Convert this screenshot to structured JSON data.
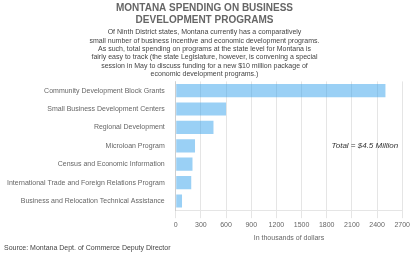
{
  "chart_data": {
    "type": "bar",
    "orientation": "horizontal",
    "title": "MONTANA SPENDING ON BUSINESS\nDEVELOPMENT PROGRAMS",
    "subtitle": "Of Ninth District states, Montana currently has a comparatively\nsmall number of business incentive and economic development programs.\nAs such, total spending on programs at the state level for Montana is\nfairly easy to track (the state Legislature, however, is convening a special\nsession in May to discuss funding for a new $10 million package of\neconomic development programs.)",
    "source": "Source: Montana Dept. of Commerce Deputy Director",
    "annotation": "Total = $4.5 Million",
    "xlabel": "In thousands of dollars",
    "categories": [
      "Community Development Block Grants",
      "Small Business Development Centers",
      "Regional Development",
      "Microloan Program",
      "Census and Economic Information",
      "International Trade and Foreign Relations Program",
      "Business and Relocation Technical Assistance"
    ],
    "values": [
      2500,
      600,
      450,
      230,
      200,
      185,
      75
    ],
    "xlim": [
      0,
      2700
    ],
    "xticks": [
      0,
      300,
      600,
      900,
      1200,
      1500,
      1800,
      2100,
      2400,
      2700
    ],
    "grid": true
  }
}
